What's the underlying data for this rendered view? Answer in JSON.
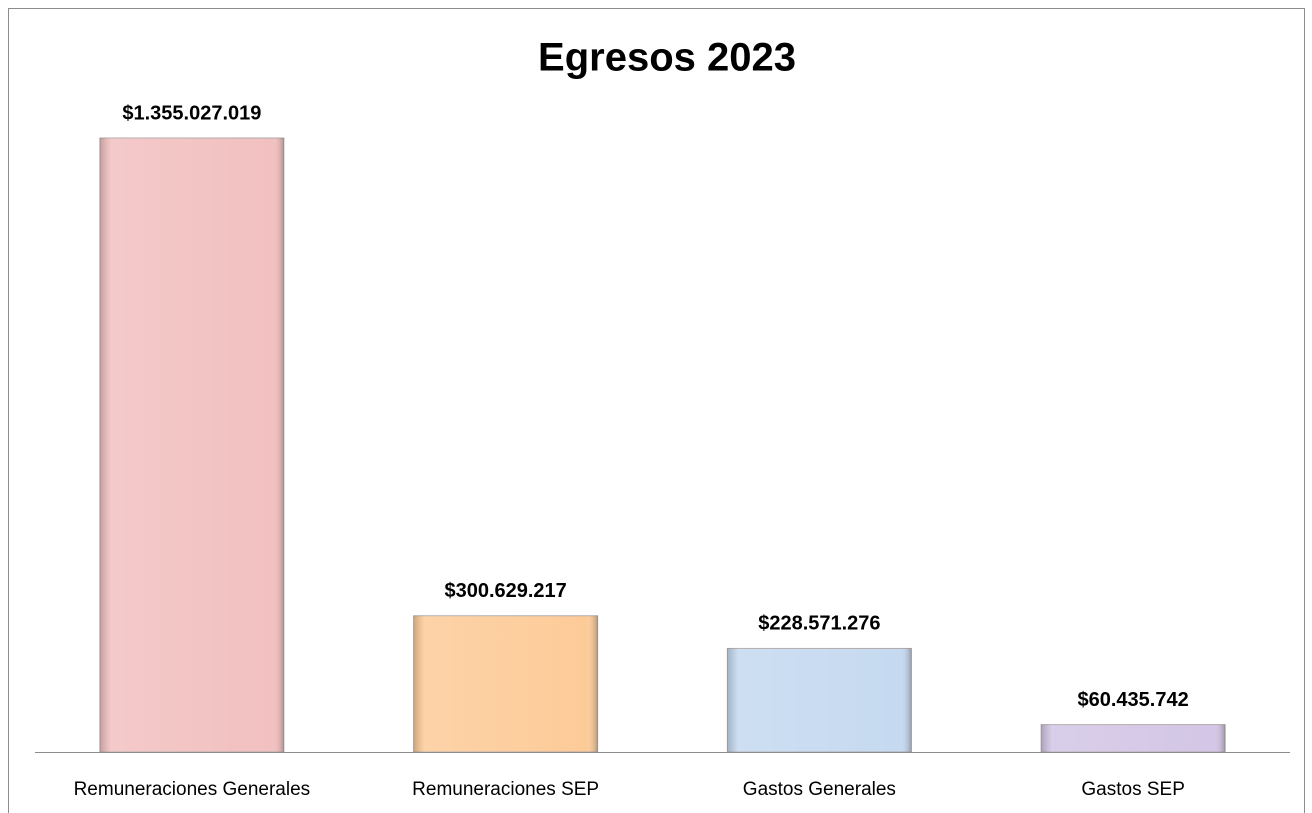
{
  "chart_data": {
    "type": "bar",
    "title": "Egresos 2023",
    "categories": [
      "Remuneraciones Generales",
      "Remuneraciones SEP",
      "Gastos Generales",
      "Gastos SEP"
    ],
    "values": [
      1355027019,
      300629217,
      228571276,
      60435742
    ],
    "value_labels": [
      "$1.355.027.019",
      "$300.629.217",
      "$228.571.276",
      "$60.435.742"
    ],
    "colors": [
      "#f2c0c0",
      "#fdcb98",
      "#c5d9f0",
      "#d3c6e6"
    ]
  }
}
